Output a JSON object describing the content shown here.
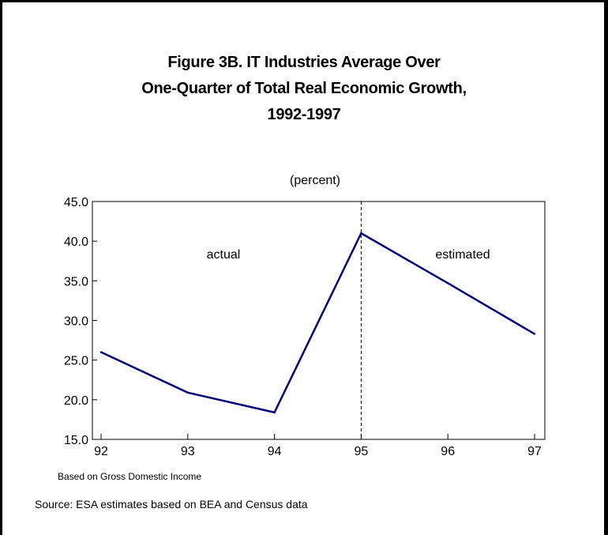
{
  "chart_data": {
    "type": "line",
    "title_lines": [
      "Figure 3B.  IT Industries Average Over",
      "One-Quarter of Total Real Economic Growth,",
      "1992-1997"
    ],
    "unit_label": "(percent)",
    "categories": [
      "92",
      "93",
      "94",
      "95",
      "96",
      "97"
    ],
    "values": [
      26.0,
      20.9,
      18.4,
      41.0,
      34.7,
      28.3
    ],
    "ylim": [
      15.0,
      45.0
    ],
    "yticks": [
      "15.0",
      "20.0",
      "25.0",
      "30.0",
      "35.0",
      "40.0",
      "45.0"
    ],
    "divider_at": "95",
    "annotations": {
      "left": "actual",
      "right": "estimated"
    },
    "line_color": "#00007a",
    "grid": false
  },
  "notes": {
    "basis": "Based on Gross Domestic Income",
    "source": "Source: ESA estimates based on BEA and Census data"
  }
}
